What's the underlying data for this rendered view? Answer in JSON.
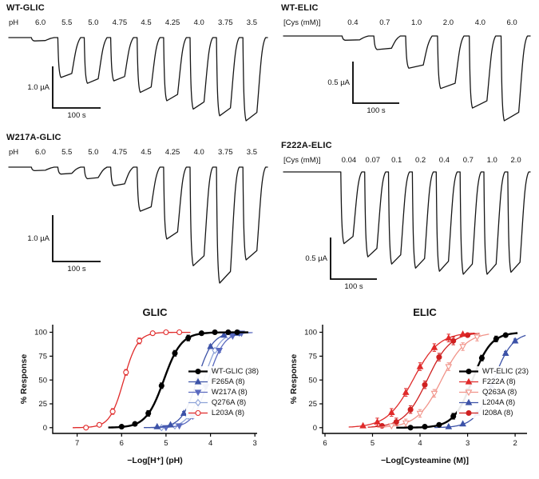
{
  "panels": [
    {
      "title": "WT-GLIC",
      "label_prefix": "pH",
      "labels": [
        "6.0",
        "5.5",
        "5.0",
        "4.75",
        "4.5",
        "4.25",
        "4.0",
        "3.75",
        "3.5"
      ],
      "amplitudes": [
        0.04,
        0.48,
        0.55,
        0.52,
        0.66,
        0.76,
        0.86,
        0.94,
        1.0
      ],
      "scale_current": "1.0 µA",
      "scale_time": "100 s"
    },
    {
      "title": "WT-ELIC",
      "label_prefix": "[Cys (mM)]",
      "labels": [
        "0.4",
        "0.7",
        "1.0",
        "2.0",
        "4.0",
        "6.0"
      ],
      "amplitudes": [
        0.05,
        0.16,
        0.38,
        0.62,
        0.85,
        1.0
      ],
      "scale_current": "0.5 µA",
      "scale_time": "100 s"
    },
    {
      "title": "W217A-GLIC",
      "label_prefix": "pH",
      "labels": [
        "6.0",
        "5.5",
        "5.0",
        "4.75",
        "4.5",
        "4.25",
        "4.0",
        "3.75",
        "3.5"
      ],
      "amplitudes": [
        0.03,
        0.06,
        0.1,
        0.16,
        0.38,
        0.62,
        0.85,
        1.0,
        0.8
      ],
      "scale_current": "1.0 µA",
      "scale_time": "100 s"
    },
    {
      "title": "F222A-ELIC",
      "label_prefix": "[Cys (mM)]",
      "labels": [
        "0.04",
        "0.07",
        "0.1",
        "0.2",
        "0.4",
        "0.7",
        "1.0",
        "2.0"
      ],
      "amplitudes": [
        0.7,
        0.83,
        0.9,
        0.94,
        0.97,
        1.0,
        1.0,
        0.98
      ],
      "scale_current": "0.5 µA",
      "scale_time": "100 s"
    }
  ],
  "chart_data": [
    {
      "type": "line",
      "title": "GLIC",
      "xlabel": "−Log[H⁺] (pH)",
      "ylabel": "% Response",
      "xlim": [
        7.55,
        2.95
      ],
      "ylim": [
        0,
        100
      ],
      "x_ticks": [
        7,
        6,
        5,
        4,
        3
      ],
      "y_ticks": [
        0,
        25,
        50,
        75,
        100
      ],
      "grid": false,
      "legend_position": "inside-right",
      "series": [
        {
          "name": "WT-GLIC (38)",
          "color": "#000000",
          "marker": "circle",
          "filled": true,
          "line_width": 2.4,
          "ec50": 5.05,
          "hill": 2.2,
          "sem": 3,
          "points": {
            "x": [
              6.0,
              5.7,
              5.4,
              5.1,
              4.8,
              4.5,
              4.2,
              3.9,
              3.6,
              3.4
            ],
            "y": [
              1,
              4,
              15,
              44,
              78,
              94,
              99,
              100,
              100,
              100
            ]
          }
        },
        {
          "name": "F265A (8)",
          "color": "#3d53a8",
          "marker": "triangle-up",
          "filled": true,
          "line_width": 1.3,
          "ec50": 4.3,
          "hill": 2.5,
          "sem": 2,
          "points": {
            "x": [
              5.2,
              4.9,
              4.6,
              4.3,
              4.0,
              3.7,
              3.4
            ],
            "y": [
              1,
              3,
              15,
              50,
              85,
              97,
              99
            ]
          }
        },
        {
          "name": "W217A (8)",
          "color": "#5a6abf",
          "marker": "triangle-down",
          "filled": true,
          "line_width": 1.3,
          "ec50": 4.05,
          "hill": 2.5,
          "sem": 2,
          "points": {
            "x": [
              5.0,
              4.7,
              4.4,
              4.1,
              3.8,
              3.5,
              3.3
            ],
            "y": [
              0,
              2,
              12,
              43,
              81,
              96,
              99
            ]
          }
        },
        {
          "name": "Q276A (8)",
          "color": "#8ea3d8",
          "marker": "diamond",
          "filled": false,
          "line_width": 1.3,
          "ec50": 4.15,
          "hill": 2.5,
          "sem": 2,
          "points": {
            "x": [
              5.1,
              4.8,
              4.5,
              4.2,
              3.9,
              3.6,
              3.35
            ],
            "y": [
              0,
              2,
              12,
              43,
              81,
              96,
              99
            ]
          }
        },
        {
          "name": "L203A (8)",
          "color": "#e02b2b",
          "marker": "circle",
          "filled": false,
          "line_width": 1.3,
          "ec50": 5.95,
          "hill": 2.8,
          "sem": 3,
          "points": {
            "x": [
              6.8,
              6.5,
              6.2,
              5.9,
              5.6,
              5.3,
              5.0,
              4.7
            ],
            "y": [
              0,
              3,
              17,
              58,
              91,
              99,
              100,
              100
            ]
          }
        }
      ]
    },
    {
      "type": "line",
      "title": "ELIC",
      "xlabel": "−Log[Cysteamine (M)]",
      "ylabel": "% Response",
      "xlim": [
        6.05,
        1.75
      ],
      "ylim": [
        0,
        100
      ],
      "x_ticks": [
        6,
        5,
        4,
        3,
        2
      ],
      "y_ticks": [
        0,
        25,
        50,
        75,
        100
      ],
      "grid": false,
      "legend_position": "inside-right",
      "series": [
        {
          "name": "WT-ELIC (23)",
          "color": "#000000",
          "marker": "circle",
          "filled": true,
          "line_width": 2.4,
          "ec50": 2.9,
          "hill": 2.2,
          "sem": 3,
          "points": {
            "x": [
              4.2,
              3.9,
              3.6,
              3.3,
              3.0,
              2.7,
              2.4,
              2.2
            ],
            "y": [
              0,
              1,
              3,
              12,
              38,
              73,
              93,
              97
            ]
          }
        },
        {
          "name": "F222A (8)",
          "color": "#e02b2b",
          "marker": "triangle-up",
          "filled": true,
          "line_width": 1.3,
          "ec50": 4.15,
          "hill": 1.6,
          "sem": 4,
          "points": {
            "x": [
              5.2,
              4.9,
              4.6,
              4.3,
              4.0,
              3.7,
              3.4,
              3.1
            ],
            "y": [
              2,
              6,
              16,
              37,
              64,
              84,
              94,
              98
            ]
          }
        },
        {
          "name": "Q263A (8)",
          "color": "#f1948a",
          "marker": "triangle-down",
          "filled": false,
          "line_width": 1.3,
          "ec50": 3.55,
          "hill": 1.7,
          "sem": 4,
          "points": {
            "x": [
              4.6,
              4.3,
              4.0,
              3.7,
              3.4,
              3.1,
              2.8
            ],
            "y": [
              2,
              5,
              15,
              36,
              64,
              85,
              95
            ]
          }
        },
        {
          "name": "L204A (8)",
          "color": "#3d53a8",
          "marker": "triangle-up",
          "filled": true,
          "line_width": 1.3,
          "ec50": 2.45,
          "hill": 2.2,
          "sem": 2,
          "points": {
            "x": [
              3.4,
              3.1,
              2.8,
              2.5,
              2.2,
              2.0
            ],
            "y": [
              1,
              4,
              15,
              44,
              78,
              91
            ]
          }
        },
        {
          "name": "I208A (8)",
          "color": "#cf2020",
          "marker": "circle",
          "filled": true,
          "line_width": 1.3,
          "ec50": 3.85,
          "hill": 1.8,
          "sem": 4,
          "points": {
            "x": [
              4.8,
              4.5,
              4.2,
              3.9,
              3.6,
              3.3,
              3.0
            ],
            "y": [
              2,
              6,
              19,
              45,
              74,
              91,
              97
            ]
          }
        }
      ]
    }
  ]
}
